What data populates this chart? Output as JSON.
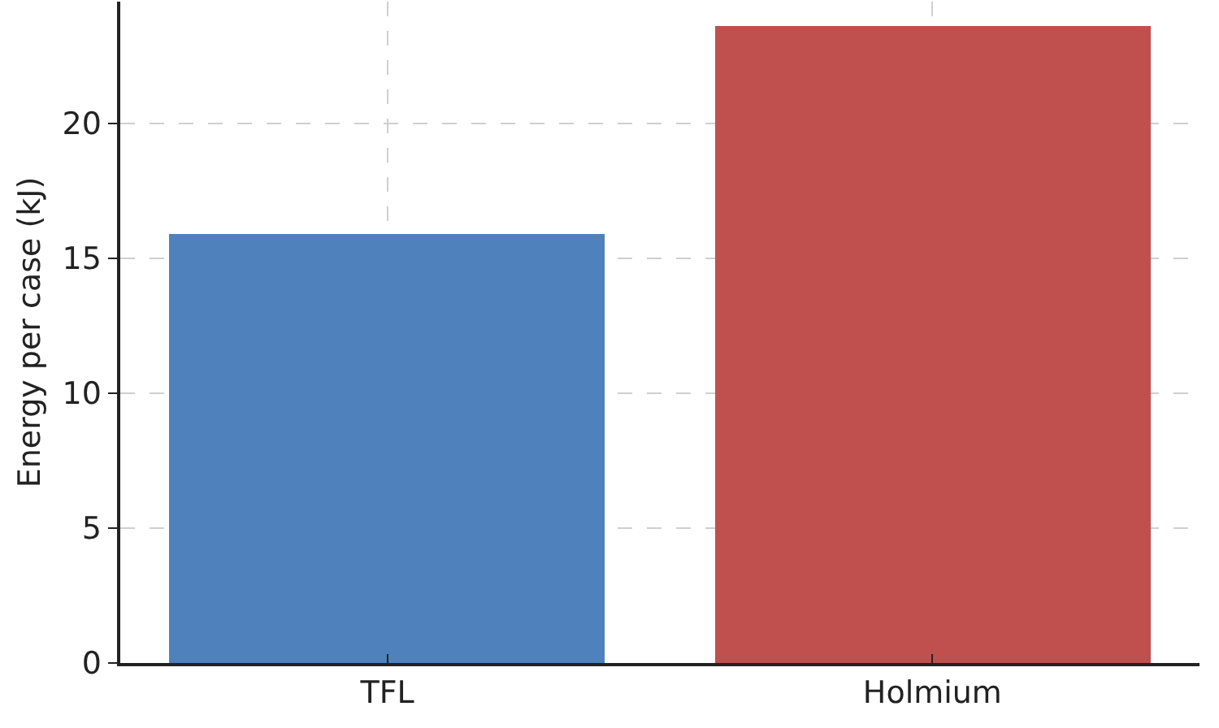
{
  "chart_data": {
    "type": "bar",
    "ylabel": "Energy per case (kJ)",
    "categories": [
      "TFL",
      "Holmium"
    ],
    "values": [
      15.9,
      23.6
    ],
    "colors": [
      "#4f81bd",
      "#c0504d"
    ],
    "ylim": [
      0,
      24.5
    ],
    "yticks": [
      0,
      5,
      10,
      15,
      20
    ],
    "grid": true
  }
}
